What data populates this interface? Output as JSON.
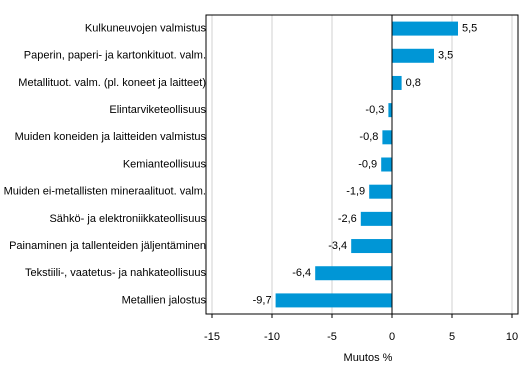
{
  "chart_data": {
    "type": "hbar",
    "xlabel": "Muutos %",
    "categories": [
      "Kulkuneuvojen valmistus",
      "Paperin, paperi- ja kartonkituot. valm.",
      "Metallituot. valm. (pl. koneet ja laitteet)",
      "Elintarviketeollisuus",
      "Muiden koneiden ja laitteiden valmistus",
      "Kemianteollisuus",
      "Muiden ei-metallisten mineraalituot. valm.",
      "Sähkö- ja elektroniikkateollisuus",
      "Painaminen ja tallenteiden jäljentäminen",
      "Tekstiili-, vaatetus- ja nahkateollisuus",
      "Metallien jalostus"
    ],
    "values": [
      5.5,
      3.5,
      0.8,
      -0.3,
      -0.8,
      -0.9,
      -1.9,
      -2.6,
      -3.4,
      -6.4,
      -9.7
    ],
    "value_labels": [
      "5,5",
      "3,5",
      "0,8",
      "-0,3",
      "-0,8",
      "-0,9",
      "-1,9",
      "-2,6",
      "-3,4",
      "-6,4",
      "-9,7"
    ],
    "color": "#0096d6",
    "xlim": [
      -15.5,
      10.5
    ],
    "xticks": [
      -15,
      -10,
      -5,
      0,
      5,
      10
    ],
    "grid": true
  }
}
